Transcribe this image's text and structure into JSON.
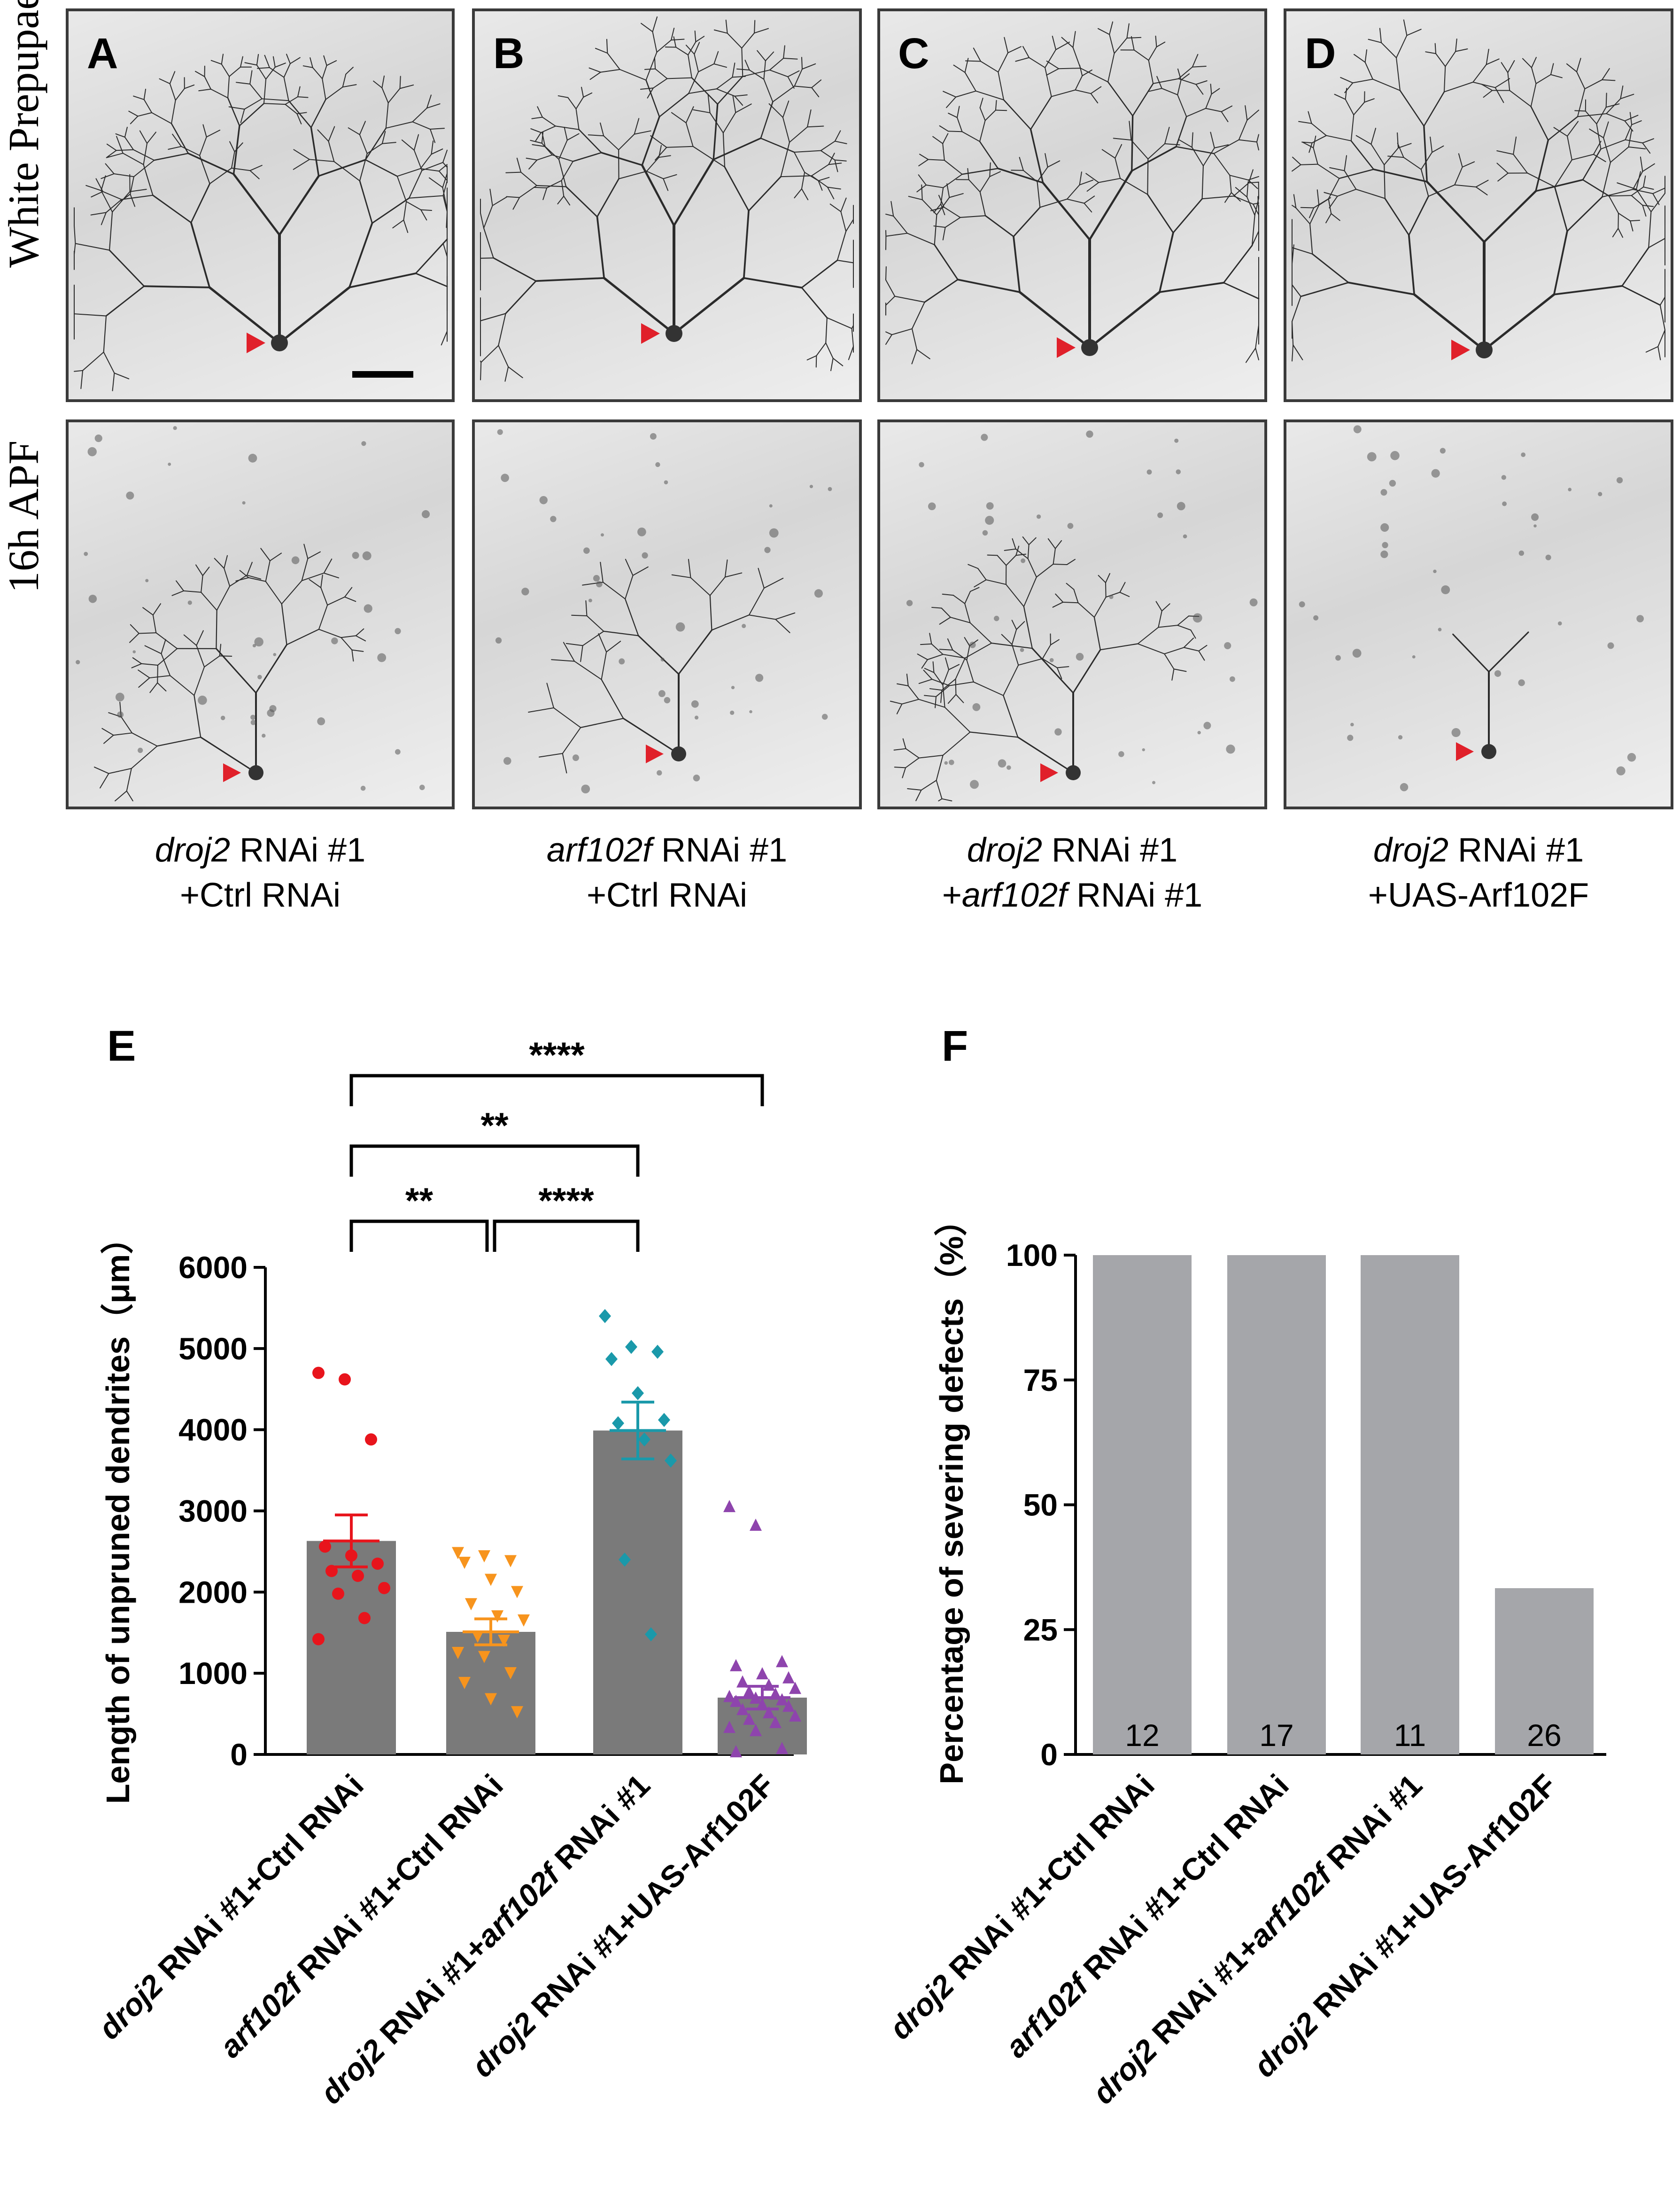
{
  "rows": [
    "White Prepupae",
    "16h APF"
  ],
  "panels": [
    "A",
    "B",
    "C",
    "D"
  ],
  "captions": [
    {
      "l1_it": "droj2",
      "l1_rest": " RNAi #1",
      "l2_pre": "+Ctrl RNAi",
      "l2_it": "",
      "l2_rest": ""
    },
    {
      "l1_it": "arf102f",
      "l1_rest": " RNAi #1",
      "l2_pre": "+Ctrl RNAi",
      "l2_it": "",
      "l2_rest": ""
    },
    {
      "l1_it": "droj2",
      "l1_rest": " RNAi #1",
      "l2_pre": "+",
      "l2_it": "arf102f",
      "l2_rest": " RNAi #1"
    },
    {
      "l1_it": "droj2",
      "l1_rest": " RNAi #1",
      "l2_pre": "+UAS-Arf102F",
      "l2_it": "",
      "l2_rest": ""
    }
  ],
  "colors": {
    "bar": "#7a7a7a",
    "barF": "#a5a6aa",
    "arrow": "#e0202a",
    "s1": "#e8141c",
    "s2": "#f7941d",
    "s3": "#1a99aa",
    "s4": "#8e44ad"
  },
  "chart_data": [
    {
      "panel": "E",
      "type": "bar",
      "ylabel": "Length of unpruned dendrites（μm）",
      "ylim": [
        0,
        6000
      ],
      "yticks": [
        "0",
        "1000",
        "2000",
        "3000",
        "4000",
        "5000",
        "6000"
      ],
      "categories": [
        {
          "parts": [
            [
              "droj2",
              true
            ],
            [
              " RNAi #1+Ctrl RNAi",
              false
            ]
          ]
        },
        {
          "parts": [
            [
              "arf102f",
              true
            ],
            [
              " RNAi #1+Ctrl RNAi",
              false
            ]
          ]
        },
        {
          "parts": [
            [
              "droj2",
              true
            ],
            [
              " RNAi #1+",
              false
            ],
            [
              "arf102f",
              true
            ],
            [
              " RNAi #1",
              false
            ]
          ]
        },
        {
          "parts": [
            [
              "droj2",
              true
            ],
            [
              " RNAi #1+UAS-Arf102F",
              false
            ]
          ]
        }
      ],
      "values": [
        2630,
        1510,
        3990,
        700
      ],
      "sem": [
        320,
        160,
        350,
        140
      ],
      "points": [
        [
          4700,
          4620,
          3880,
          2560,
          2450,
          2350,
          2260,
          2200,
          2050,
          1980,
          1680,
          1420
        ],
        [
          2480,
          2440,
          2380,
          2360,
          2150,
          2000,
          1850,
          1700,
          1650,
          1450,
          1400,
          1250,
          1200,
          1000,
          880,
          680,
          520
        ],
        [
          5400,
          5020,
          4960,
          4870,
          4450,
          4120,
          4080,
          3880,
          3620,
          2400,
          1480
        ],
        [
          3060,
          2830,
          1150,
          1100,
          1000,
          950,
          900,
          860,
          820,
          780,
          750,
          720,
          700,
          680,
          660,
          620,
          600,
          560,
          520,
          480,
          440,
          400,
          340,
          300,
          80,
          40
        ]
      ],
      "markers": [
        "circle",
        "triangle-down",
        "diamond",
        "triangle-up"
      ],
      "significance": [
        {
          "from": 0,
          "to": 3,
          "label": "****"
        },
        {
          "from": 0,
          "to": 2,
          "label": "**"
        },
        {
          "from": 0,
          "to": 1,
          "label": "**"
        },
        {
          "from": 1,
          "to": 2,
          "label": "****"
        }
      ]
    },
    {
      "panel": "F",
      "type": "bar",
      "ylabel": "Percentage of severing defects（%）",
      "ylim": [
        0,
        100
      ],
      "yticks": [
        "0",
        "25",
        "50",
        "75",
        "100"
      ],
      "categories": [
        {
          "parts": [
            [
              "droj2",
              true
            ],
            [
              " RNAi #1+Ctrl RNAi",
              false
            ]
          ]
        },
        {
          "parts": [
            [
              "arf102f",
              true
            ],
            [
              " RNAi #1+Ctrl RNAi",
              false
            ]
          ]
        },
        {
          "parts": [
            [
              "droj2",
              true
            ],
            [
              " RNAi #1+",
              false
            ],
            [
              "arf102f",
              true
            ],
            [
              " RNAi #1",
              false
            ]
          ]
        },
        {
          "parts": [
            [
              "droj2",
              true
            ],
            [
              " RNAi #1+UAS-Arf102F",
              false
            ]
          ]
        }
      ],
      "values": [
        100,
        100,
        100,
        33.3
      ],
      "n": [
        "12",
        "17",
        "11",
        "26"
      ]
    }
  ]
}
